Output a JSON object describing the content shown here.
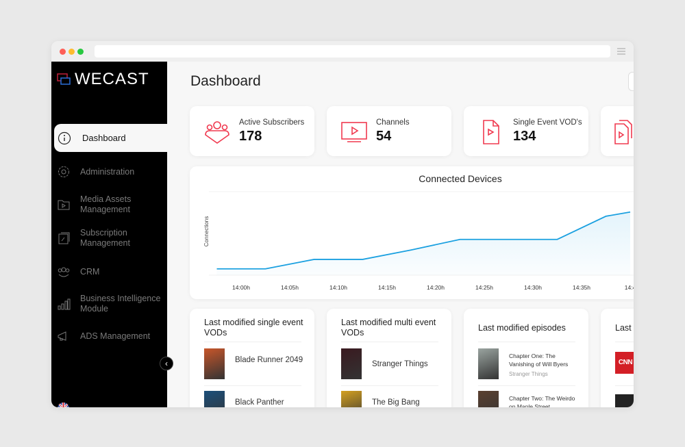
{
  "app": {
    "brand": "WECAST"
  },
  "sidebar": {
    "items": [
      {
        "label": "Dashboard",
        "icon": "dashboard-gauge-icon",
        "active": true
      },
      {
        "label": "Administration",
        "icon": "gear-icon"
      },
      {
        "label": "Media Assets Management",
        "icon": "folder-play-icon"
      },
      {
        "label": "Subscription Management",
        "icon": "subscription-edit-icon"
      },
      {
        "label": "CRM",
        "icon": "users-group-icon"
      },
      {
        "label": "Business Intelligence Module",
        "icon": "bar-chart-icon"
      },
      {
        "label": "ADS Management",
        "icon": "megaphone-icon"
      }
    ],
    "collapse_icon": "chevron-left-icon",
    "language_icon": "uk-flag-icon"
  },
  "header": {
    "title": "Dashboard"
  },
  "stats": [
    {
      "label": "Active Subscribers",
      "value": "178",
      "icon": "subscribers-icon"
    },
    {
      "label": "Channels",
      "value": "54",
      "icon": "tv-play-icon"
    },
    {
      "label": "Single Event VOD's",
      "value": "134",
      "icon": "file-play-icon"
    },
    {
      "label": "",
      "value": "",
      "icon": "multi-file-play-icon"
    }
  ],
  "colors": {
    "accent": "#f0394f",
    "line": "#1aa0e0",
    "sidebar": "#000000"
  },
  "chart_data": {
    "type": "area",
    "title": "Connected Devices",
    "ylabel": "Connections",
    "xlabel": "",
    "x_ticks": [
      "14:00h",
      "14:05h",
      "14:10h",
      "14:15h",
      "14:20h",
      "14:25h",
      "14:30h",
      "14:35h",
      "14:4"
    ],
    "x": [
      "13:57:30",
      "14:02:30",
      "14:07:30",
      "14:12:30",
      "14:17:30",
      "14:22:30",
      "14:32:30",
      "14:37:30",
      "14:40:00"
    ],
    "values": [
      3,
      3,
      7.5,
      7.5,
      12,
      17,
      17,
      28,
      30
    ],
    "ylim": [
      0,
      40
    ],
    "grid": false
  },
  "lists": [
    {
      "title": "Last modified single event VODs",
      "items": [
        {
          "title": "Blade Runner 2049"
        },
        {
          "title": "Black Panther"
        }
      ]
    },
    {
      "title": "Last modified multi event VODs",
      "items": [
        {
          "title": "Stranger Things"
        },
        {
          "title": "The Big Bang"
        }
      ]
    },
    {
      "title": "Last modified episodes",
      "items": [
        {
          "title": "Chapter One: The Vanishing of Will Byers",
          "series": "Stranger Things"
        },
        {
          "title": "Chapter Two: The Weirdo on Maple Street"
        }
      ]
    },
    {
      "title": "Last",
      "items": [
        {
          "title": "CNN"
        },
        {
          "title": ""
        }
      ]
    }
  ]
}
